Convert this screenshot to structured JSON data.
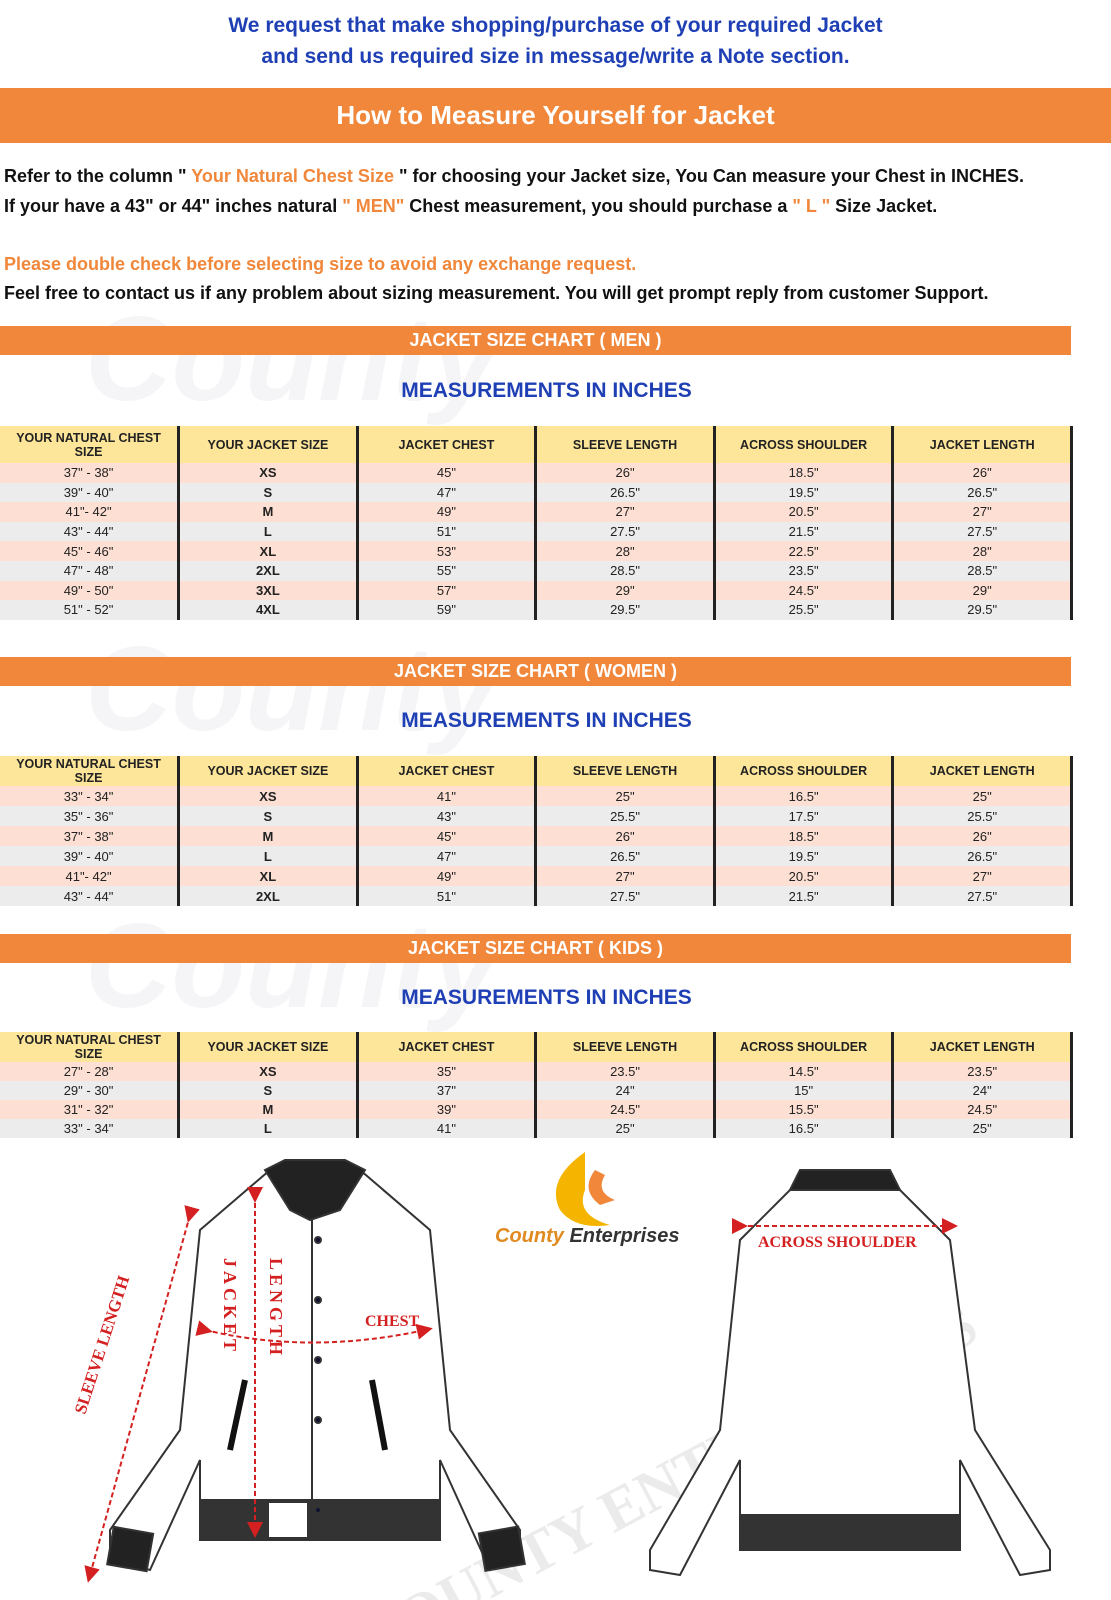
{
  "intro": {
    "line1": "We request that make shopping/purchase of your required Jacket",
    "line2": "and send us required size in message/write a Note section."
  },
  "title": "How to Measure Yourself for Jacket",
  "instructions": {
    "l1a": "Refer to the column \"",
    "l1b": " Your Natural Chest Size ",
    "l1c": "\" for choosing your Jacket size, You Can measure your Chest in INCHES.",
    "l2a": "If your have a 43\" or 44\"  inches natural ",
    "l2b": "\" MEN\"",
    "l2c": " Chest measurement, you should purchase a ",
    "l2d": "\" L \"",
    "l2e": " Size Jacket.",
    "warning": "Please double check before selecting size to avoid any exchange request.",
    "contact": "Feel free to contact us if any problem about sizing measurement. You will get prompt reply from customer Support."
  },
  "accent_color": "#f0873a",
  "headers": [
    "YOUR NATURAL CHEST SIZE",
    "YOUR JACKET SIZE",
    "JACKET CHEST",
    "SLEEVE LENGTH",
    "ACROSS SHOULDER",
    "JACKET LENGTH"
  ],
  "subtitle": "MEASUREMENTS IN INCHES",
  "watermark": "County",
  "charts": [
    {
      "title": "JACKET SIZE CHART ( MEN )",
      "rows": [
        [
          "37\" - 38\"",
          "XS",
          "45\"",
          "26\"",
          "18.5\"",
          "26\""
        ],
        [
          "39\" - 40\"",
          "S",
          "47\"",
          "26.5\"",
          "19.5\"",
          "26.5\""
        ],
        [
          "41\"- 42\"",
          "M",
          "49\"",
          "27\"",
          "20.5\"",
          "27\""
        ],
        [
          "43\" - 44\"",
          "L",
          "51\"",
          "27.5\"",
          "21.5\"",
          "27.5\""
        ],
        [
          "45\" - 46\"",
          "XL",
          "53\"",
          "28\"",
          "22.5\"",
          "28\""
        ],
        [
          "47\" - 48\"",
          "2XL",
          "55\"",
          "28.5\"",
          "23.5\"",
          "28.5\""
        ],
        [
          "49\" - 50\"",
          "3XL",
          "57\"",
          "29\"",
          "24.5\"",
          "29\""
        ],
        [
          "51\" - 52\"",
          "4XL",
          "59\"",
          "29.5\"",
          "25.5\"",
          "29.5\""
        ]
      ]
    },
    {
      "title": "JACKET SIZE CHART ( WOMEN )",
      "rows": [
        [
          "33\" - 34\"",
          "XS",
          "41\"",
          "25\"",
          "16.5\"",
          "25\""
        ],
        [
          "35\" - 36\"",
          "S",
          "43\"",
          "25.5\"",
          "17.5\"",
          "25.5\""
        ],
        [
          "37\" - 38\"",
          "M",
          "45\"",
          "26\"",
          "18.5\"",
          "26\""
        ],
        [
          "39\" - 40\"",
          "L",
          "47\"",
          "26.5\"",
          "19.5\"",
          "26.5\""
        ],
        [
          "41\"- 42\"",
          "XL",
          "49\"",
          "27\"",
          "20.5\"",
          "27\""
        ],
        [
          "43\" - 44\"",
          "2XL",
          "51\"",
          "27.5\"",
          "21.5\"",
          "27.5\""
        ]
      ]
    },
    {
      "title": "JACKET SIZE CHART ( KIDS )",
      "rows": [
        [
          "27\" - 28\"",
          "XS",
          "35\"",
          "23.5\"",
          "14.5\"",
          "23.5\""
        ],
        [
          "29\" - 30\"",
          "S",
          "37\"",
          "24\"",
          "15\"",
          "24\""
        ],
        [
          "31\" - 32\"",
          "M",
          "39\"",
          "24.5\"",
          "15.5\"",
          "24.5\""
        ],
        [
          "33\" - 34\"",
          "L",
          "41\"",
          "25\"",
          "16.5\"",
          "25\""
        ]
      ]
    }
  ],
  "diagram": {
    "sleeve": "SLEEVE LENGTH",
    "jacket": "JACKET",
    "length": "LENGTH",
    "chest": "CHEST",
    "shoulder": "ACROSS SHOULDER",
    "brand1": "County",
    "brand2": " Enterprises",
    "watermark": "COUNTY ENTERPRISES"
  }
}
